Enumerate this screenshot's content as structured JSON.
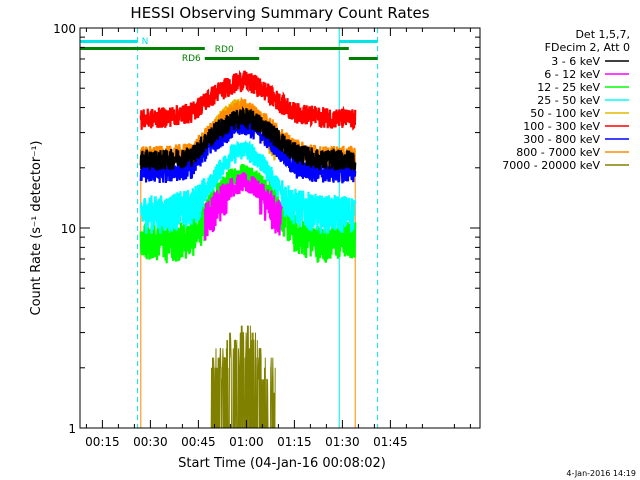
{
  "chart_data": {
    "type": "line",
    "title": "HESSI Observing Summary Count Rates",
    "xlabel": "Start Time (04-Jan-16 00:08:02)",
    "ylabel": "Count Rate (s⁻¹ detector⁻¹)",
    "y_scale": "log",
    "ylim": [
      1,
      100
    ],
    "xlim_minutes": [
      8,
      133
    ],
    "x_ticks": [
      {
        "minute": 15,
        "label": "00:15"
      },
      {
        "minute": 30,
        "label": "00:30"
      },
      {
        "minute": 45,
        "label": "00:45"
      },
      {
        "minute": 60,
        "label": "01:00"
      },
      {
        "minute": 75,
        "label": "01:15"
      },
      {
        "minute": 90,
        "label": "01:30"
      },
      {
        "minute": 105,
        "label": "01:45"
      }
    ],
    "y_ticks": [
      {
        "value": 1,
        "label": "1"
      },
      {
        "value": 10,
        "label": "10"
      },
      {
        "value": 100,
        "label": "100"
      }
    ],
    "legend_header": [
      "Det 1,5,7,",
      "FDecim 2, Att 0"
    ],
    "legend_placement": "right",
    "flag_labels": {
      "n": "N",
      "rd0": "RD0",
      "rd6": "RD6"
    },
    "timestamp": "4-Jan-2016 14:19",
    "data_window_minutes": [
      27,
      94
    ],
    "cyan_markers_minutes": [
      8,
      26,
      89,
      101
    ],
    "orange_markers_minutes": [
      27,
      94
    ],
    "series": [
      {
        "name": "3 - 6 keV",
        "color": "#000000",
        "times": [
          27,
          35,
          43,
          47,
          51,
          55,
          59,
          63,
          67,
          71,
          75,
          83,
          94
        ],
        "values": [
          22,
          22,
          23,
          27,
          31,
          34,
          36,
          34,
          31,
          27,
          24,
          22,
          22
        ]
      },
      {
        "name": "6 - 12 keV",
        "color": "#ff00ff",
        "times": [
          47,
          51,
          55,
          59,
          63,
          67,
          71
        ],
        "values": [
          11,
          13,
          16,
          17,
          16,
          13,
          11
        ]
      },
      {
        "name": "12 - 25 keV",
        "color": "#00ff00",
        "times": [
          27,
          35,
          43,
          47,
          51,
          55,
          59,
          63,
          67,
          71,
          75,
          83,
          94
        ],
        "values": [
          9,
          8.5,
          9,
          11,
          15,
          18,
          19,
          18,
          15,
          12,
          9.5,
          8.5,
          9
        ]
      },
      {
        "name": "25 - 50 keV",
        "color": "#00ffff",
        "times": [
          27,
          35,
          43,
          47,
          51,
          55,
          59,
          63,
          67,
          71,
          75,
          83,
          94
        ],
        "values": [
          12,
          12,
          13,
          15,
          19,
          23,
          25,
          23,
          19,
          15,
          13,
          12,
          12
        ]
      },
      {
        "name": "50 - 100 keV",
        "color": "#e6b800",
        "times": [
          45,
          49,
          53,
          57,
          61,
          65,
          69
        ],
        "values": [
          24,
          30,
          36,
          40,
          37,
          30,
          24
        ]
      },
      {
        "name": "100 - 300 keV",
        "color": "#ff0000",
        "times": [
          27,
          35,
          43,
          47,
          51,
          55,
          59,
          63,
          67,
          71,
          75,
          83,
          94
        ],
        "values": [
          35,
          36,
          38,
          43,
          48,
          52,
          55,
          52,
          47,
          42,
          38,
          36,
          35
        ]
      },
      {
        "name": "300 - 800 keV",
        "color": "#0000ff",
        "times": [
          27,
          35,
          43,
          47,
          51,
          55,
          59,
          63,
          67,
          71,
          75,
          83,
          94
        ],
        "values": [
          19,
          19,
          20,
          24,
          28,
          31,
          33,
          31,
          28,
          24,
          20,
          19,
          19
        ]
      },
      {
        "name": "800 - 7000 keV",
        "color": "#ff8c00",
        "times": [
          27,
          35,
          43,
          47,
          51,
          55,
          59,
          63,
          67,
          71,
          75,
          83,
          94
        ],
        "values": [
          23,
          23,
          24,
          28,
          33,
          37,
          40,
          37,
          33,
          28,
          25,
          23,
          23
        ]
      },
      {
        "name": "7000 - 20000 keV",
        "color": "#808000",
        "times": [
          49,
          53,
          57,
          61,
          65,
          69
        ],
        "values": [
          1.6,
          1.9,
          2.2,
          2.2,
          1.8,
          1.4
        ]
      }
    ]
  }
}
